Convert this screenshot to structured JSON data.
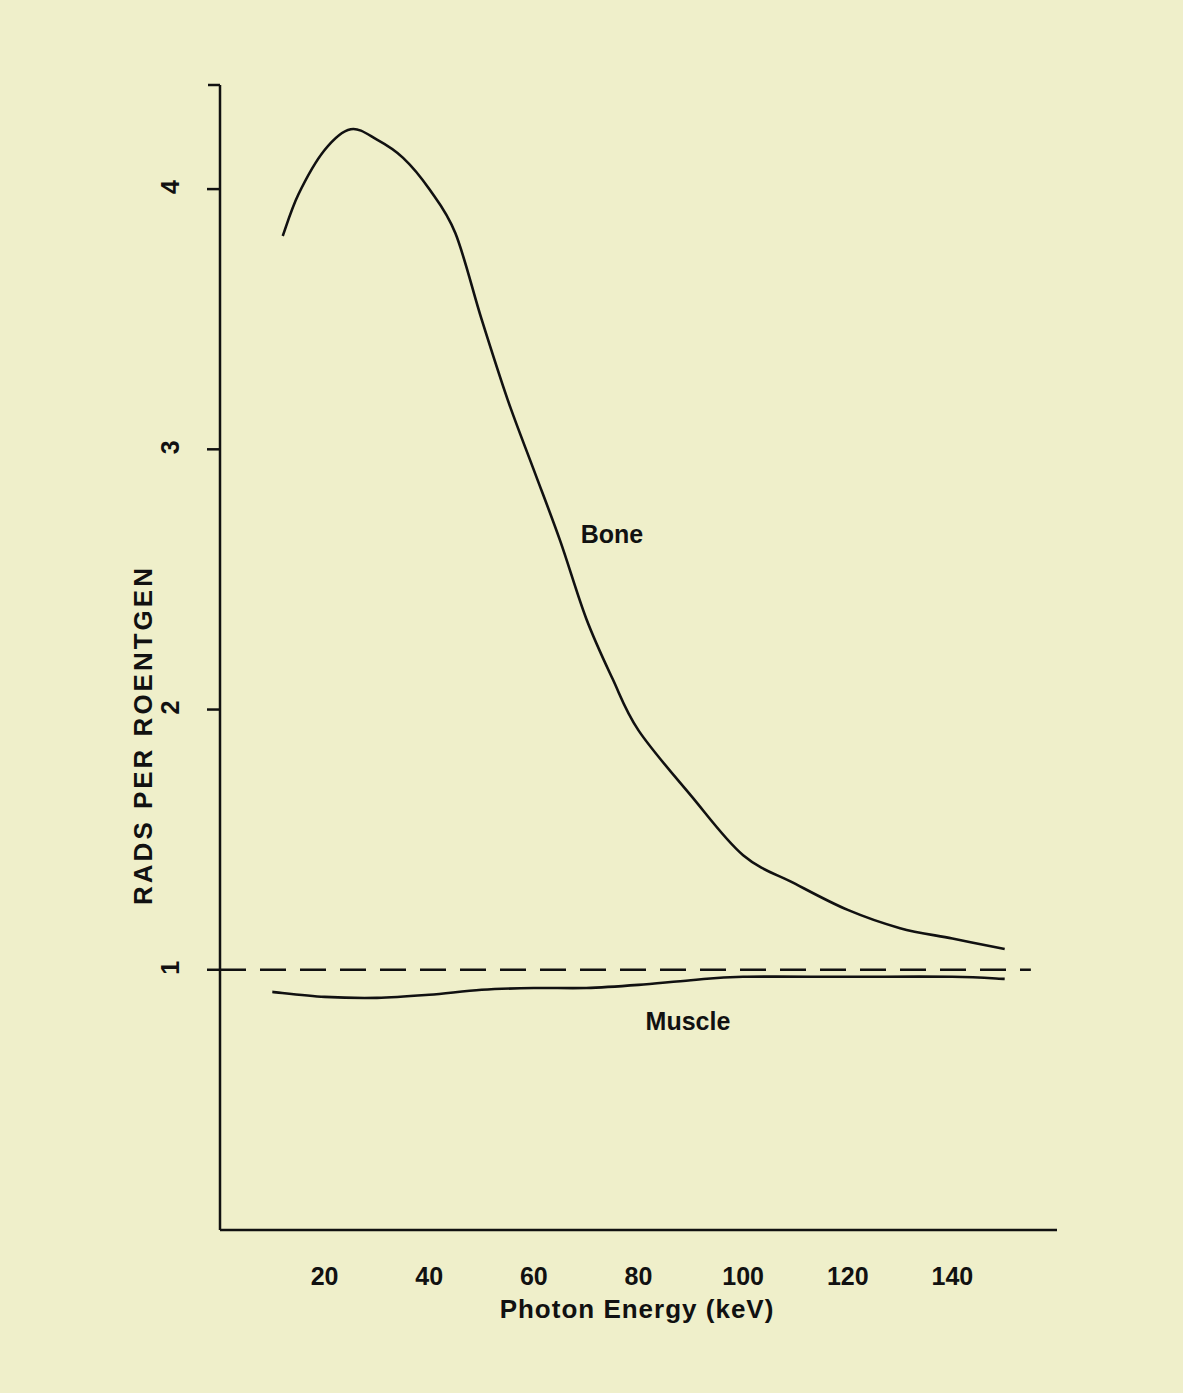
{
  "chart_data": {
    "type": "line",
    "x_label": "Photon Energy (keV)",
    "y_label": "RADS PER ROENTGEN",
    "xlim": [
      0,
      160
    ],
    "ylim": [
      0,
      4.4
    ],
    "xticks": [
      20,
      40,
      60,
      80,
      100,
      120,
      140
    ],
    "yticks": [
      1,
      2,
      3,
      4
    ],
    "grid": false,
    "series": [
      {
        "name": "Bone",
        "color": "#111111",
        "line_style": "solid",
        "x": [
          12,
          15,
          20,
          25,
          30,
          35,
          40,
          45,
          50,
          55,
          60,
          65,
          70,
          75,
          80,
          90,
          100,
          110,
          120,
          130,
          140,
          150
        ],
        "values": [
          3.82,
          3.98,
          4.15,
          4.23,
          4.19,
          4.12,
          4.0,
          3.83,
          3.5,
          3.19,
          2.92,
          2.65,
          2.35,
          2.12,
          1.92,
          1.67,
          1.44,
          1.33,
          1.23,
          1.16,
          1.12,
          1.08
        ]
      },
      {
        "name": "Muscle",
        "color": "#111111",
        "line_style": "solid",
        "x": [
          10,
          20,
          30,
          40,
          50,
          60,
          70,
          80,
          90,
          100,
          120,
          140,
          150
        ],
        "values": [
          0.915,
          0.896,
          0.892,
          0.904,
          0.923,
          0.93,
          0.93,
          0.942,
          0.96,
          0.973,
          0.973,
          0.973,
          0.965
        ]
      },
      {
        "color": "#111111",
        "line_style": "dashed",
        "x": [
          0,
          155
        ],
        "values": [
          1,
          1
        ]
      }
    ]
  }
}
